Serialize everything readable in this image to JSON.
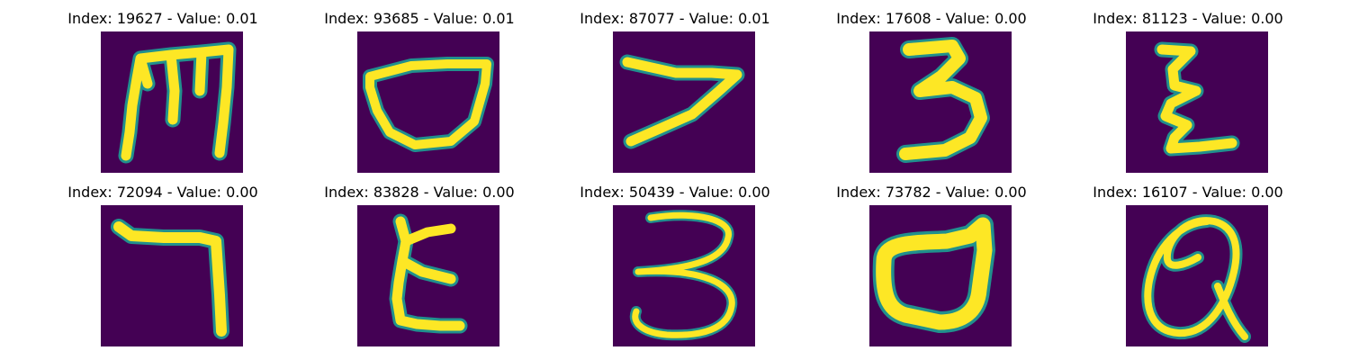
{
  "figure": {
    "background_color": "#440154",
    "stroke_color": "#fde725",
    "edge_color": "#21908d",
    "panels": [
      {
        "title": "Index: 19627 - Value: 0.01",
        "glyph": "handwritten-m-like-glyph"
      },
      {
        "title": "Index: 93685 - Value: 0.01",
        "glyph": "handwritten-bowl-glyph"
      },
      {
        "title": "Index: 87077 - Value: 0.01",
        "glyph": "handwritten-angle-glyph"
      },
      {
        "title": "Index: 17608 - Value: 0.00",
        "glyph": "handwritten-3-like-glyph"
      },
      {
        "title": "Index: 81123 - Value: 0.00",
        "glyph": "handwritten-zigzag-glyph"
      },
      {
        "title": "Index: 72094 - Value: 0.00",
        "glyph": "handwritten-7-like-glyph"
      },
      {
        "title": "Index: 83828 - Value: 0.00",
        "glyph": "handwritten-epsilon-glyph"
      },
      {
        "title": "Index: 50439 - Value: 0.00",
        "glyph": "handwritten-3-curly-glyph"
      },
      {
        "title": "Index: 73782 - Value: 0.00",
        "glyph": "handwritten-d-like-glyph"
      },
      {
        "title": "Index: 16107 - Value: 0.00",
        "glyph": "handwritten-loop-glyph"
      }
    ]
  }
}
